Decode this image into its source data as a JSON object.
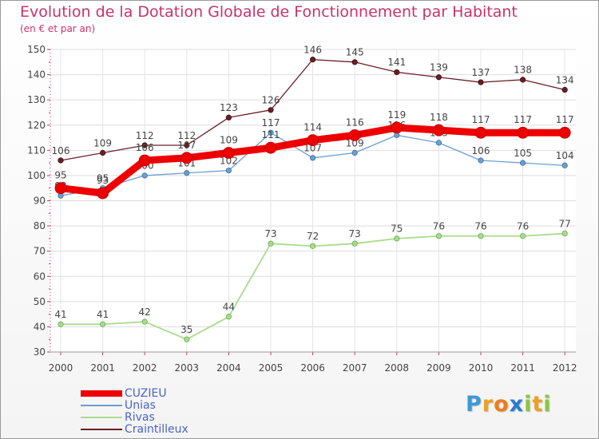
{
  "chart_data": {
    "type": "line",
    "title": "Evolution de la Dotation Globale de Fonctionnement par Habitant",
    "subtitle": "(en € et par an)",
    "xlabel": "",
    "ylabel": "",
    "ylim": [
      30,
      150
    ],
    "yticks": [
      30,
      40,
      50,
      60,
      70,
      80,
      90,
      100,
      110,
      120,
      130,
      140,
      150
    ],
    "categories": [
      "2000",
      "2001",
      "2002",
      "2003",
      "2004",
      "2005",
      "2006",
      "2007",
      "2008",
      "2009",
      "2010",
      "2011",
      "2012"
    ],
    "series": [
      {
        "name": "Craintilleux",
        "color": "#6b1e24",
        "values": [
          106,
          109,
          112,
          112,
          123,
          126,
          146,
          145,
          141,
          139,
          137,
          138,
          134
        ]
      },
      {
        "name": "Unias",
        "color": "#6d9fcf",
        "values": [
          92,
          95,
          100,
          101,
          102,
          117,
          107,
          109,
          116,
          113,
          106,
          105,
          104
        ]
      },
      {
        "name": "Rivas",
        "color": "#a8dc8c",
        "values": [
          41,
          41,
          42,
          35,
          44,
          73,
          72,
          73,
          75,
          76,
          76,
          76,
          77
        ]
      },
      {
        "name": "CUZIEU",
        "color": "#ee0000",
        "values": [
          95,
          93,
          106,
          107,
          109,
          111,
          114,
          116,
          119,
          118,
          117,
          117,
          117
        ]
      }
    ],
    "legend": [
      "CUZIEU",
      "Unias",
      "Rivas",
      "Craintilleux"
    ],
    "legend_position": "bottom-left",
    "grid": true
  },
  "logo": {
    "letters": [
      "P",
      "r",
      "o",
      "x",
      "i",
      "t",
      "i"
    ],
    "colors": [
      "#3a9ad9",
      "#f0a020",
      "#f07c1a",
      "#2a7bd1",
      "#8cc63e",
      "#f0a020",
      "#8cc63e"
    ]
  }
}
